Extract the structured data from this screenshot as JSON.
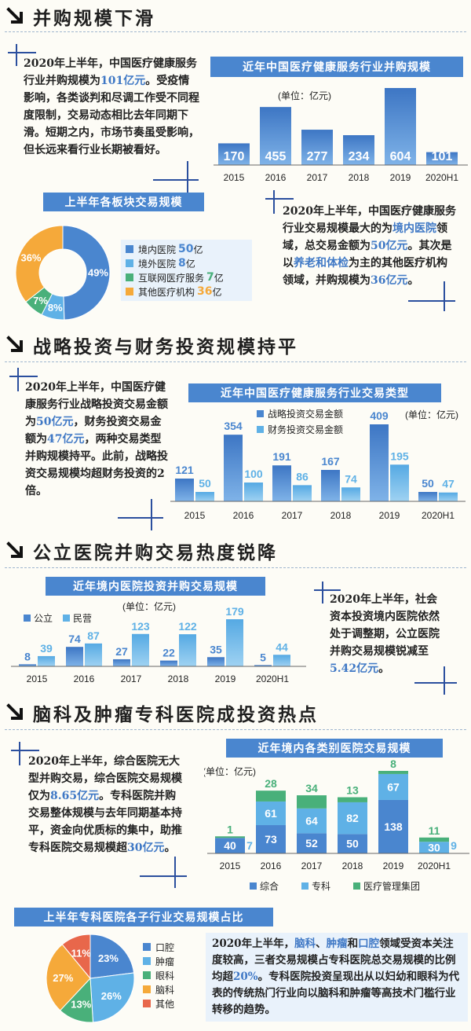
{
  "sections": [
    {
      "title": "并购规模下滑"
    },
    {
      "title": "战略投资与财务投资规模持平"
    },
    {
      "title": "公立医院并购交易热度锐降"
    },
    {
      "title": "脑科及肿瘤专科医院成投资热点"
    }
  ],
  "texts": {
    "s1_left": [
      {
        "t": "2020年上半年，中国医疗健康"
      },
      {
        "t": "服务行业并购规模为"
      },
      {
        "t": "101亿元",
        "hl": true
      },
      {
        "t": "。"
      },
      {
        "t": "受疫情影响，各类谈判和尽调工作受不同程度限制，交易动态相比去年同期下滑。短期之内，市场节奏虽受影响，但长远来看行业长期被看好。"
      }
    ],
    "s1_right": [
      {
        "t": "2020年上半年，中国医疗健康服务行业交易规模最大的为"
      },
      {
        "t": "境内医院",
        "hl": true
      },
      {
        "t": "领域，总交易金额为"
      },
      {
        "t": "50亿元",
        "hl": true
      },
      {
        "t": "。其次是以"
      },
      {
        "t": "养老和体检",
        "hl": true
      },
      {
        "t": "为主的其他医疗机构领域，并购规模为"
      },
      {
        "t": "36亿元",
        "hl": true
      },
      {
        "t": "。"
      }
    ],
    "s2_left": [
      {
        "t": "2020年上半年，中国医疗健康服务行业战略投资交易金额为"
      },
      {
        "t": "50亿元",
        "hl": true
      },
      {
        "t": "，财务投资交易金额为"
      },
      {
        "t": "47亿元",
        "hl": true
      },
      {
        "t": "，两种交易类型并购规模持平。此前，战略投资交易规模均超财务投资的2倍。"
      }
    ],
    "s3_right": [
      {
        "t": "2020年上半年，社会资本投资境内医院依然处于调整期，公立医院并购交易规模锐减至"
      },
      {
        "t": "5.42亿元",
        "hl": true
      },
      {
        "t": "。"
      }
    ],
    "s4_left": [
      {
        "t": "2020年上半年，综合医院无大型并购交易，综合医院交易规模仅为"
      },
      {
        "t": "8.65亿元",
        "hl": true
      },
      {
        "t": "。专科医院并购交易整体规模与去年同期基本持平，资金向优质标的集中，助推专科医院交易规模超"
      },
      {
        "t": "30亿元",
        "hl": true
      },
      {
        "t": "。"
      }
    ],
    "s4_bottom": [
      {
        "t": "2020年上半年，"
      },
      {
        "t": "脑科",
        "hl": true
      },
      {
        "t": "、"
      },
      {
        "t": "肿瘤",
        "hl": true
      },
      {
        "t": "和"
      },
      {
        "t": "口腔",
        "hl": true
      },
      {
        "t": "领域受资本关注度较高，三者交易规模占专科医院总交易规模的比例均超"
      },
      {
        "t": "20%",
        "hl": true
      },
      {
        "t": "。专科医院投资呈现出从以妇幼和眼科为代表的传统热门行业向以脑科和肿瘤等高技术门槛行业转移的趋势。"
      }
    ]
  },
  "colors": {
    "bar": "#4a86cf",
    "bar_light": "#5fb1e6",
    "green": "#49b07a",
    "orange": "#f5a93a",
    "red": "#e8674b",
    "navy": "#2b4f9e"
  },
  "chart_data": [
    {
      "id": "c1",
      "type": "bar",
      "title": "近年中国医疗健康服务行业并购规模",
      "unit": "(单位：亿元)",
      "categories": [
        "2015",
        "2016",
        "2017",
        "2018",
        "2019",
        "2020H1"
      ],
      "values": [
        170,
        455,
        277,
        234,
        604,
        101
      ]
    },
    {
      "id": "c2",
      "type": "pie",
      "title": "上半年各板块交易规模",
      "slices": [
        {
          "label": "境内医院",
          "value": 50,
          "unit": "亿",
          "pct": "49%"
        },
        {
          "label": "境外医院",
          "value": 8,
          "unit": "亿",
          "pct": "8%"
        },
        {
          "label": "互联网医疗服务",
          "value": 7,
          "unit": "亿",
          "pct": "7%"
        },
        {
          "label": "其他医疗机构",
          "value": 36,
          "unit": "亿",
          "pct": "36%"
        }
      ]
    },
    {
      "id": "c3",
      "type": "bar",
      "title": "近年中国医疗健康服务行业交易类型",
      "unit": "(单位：亿元)",
      "categories": [
        "2015",
        "2016",
        "2017",
        "2018",
        "2019",
        "2020H1"
      ],
      "series": [
        {
          "name": "战略投资交易金额",
          "values": [
            121,
            354,
            191,
            167,
            409,
            50
          ]
        },
        {
          "name": "财务投资交易金额",
          "values": [
            50,
            100,
            86,
            74,
            195,
            47
          ]
        }
      ]
    },
    {
      "id": "c4",
      "type": "bar",
      "title": "近年境内医院投资并购交易规模",
      "unit": "(单位：亿元)",
      "categories": [
        "2015",
        "2016",
        "2017",
        "2018",
        "2019",
        "2020H1"
      ],
      "series": [
        {
          "name": "公立",
          "values": [
            8,
            74,
            27,
            22,
            35,
            5
          ]
        },
        {
          "name": "民营",
          "values": [
            39,
            87,
            123,
            122,
            179,
            44
          ]
        }
      ]
    },
    {
      "id": "c5",
      "type": "bar",
      "title": "近年境内各类别医院交易规模",
      "unit": "(单位：亿元)",
      "categories": [
        "2015",
        "2016",
        "2017",
        "2018",
        "2019",
        "2020H1"
      ],
      "series": [
        {
          "name": "综合",
          "values": [
            40,
            73,
            52,
            50,
            138,
            null
          ]
        },
        {
          "name": "专科",
          "values": [
            null,
            61,
            64,
            82,
            67,
            30
          ]
        },
        {
          "name": "医疗管理集团",
          "values": [
            1,
            28,
            34,
            13,
            8,
            11
          ]
        }
      ],
      "side_labels": [
        {
          "category": "2015",
          "value": 7
        },
        {
          "category": "2020H1",
          "value": 9
        }
      ]
    },
    {
      "id": "c6",
      "type": "pie",
      "title": "上半年专科医院各子行业交易规模占比",
      "slices": [
        {
          "label": "口腔",
          "pct": 23
        },
        {
          "label": "肿瘤",
          "pct": 26
        },
        {
          "label": "眼科",
          "pct": 13
        },
        {
          "label": "脑科",
          "pct": 27
        },
        {
          "label": "其他",
          "pct": 11
        }
      ]
    }
  ]
}
